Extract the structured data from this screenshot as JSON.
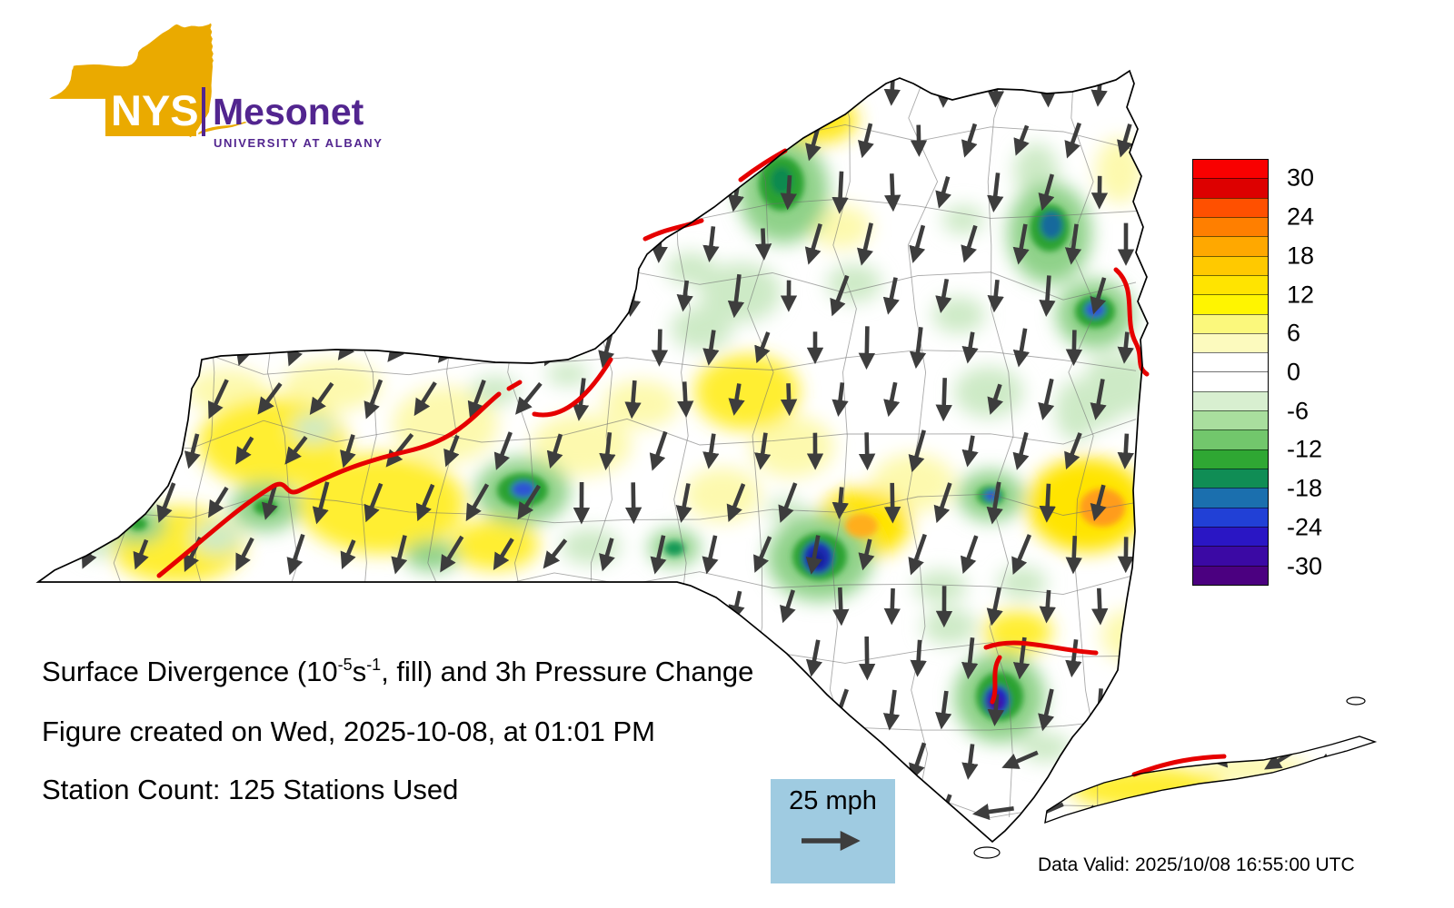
{
  "logo": {
    "nys": "NYS",
    "mesonet": "Mesonet",
    "university": "UNIVERSITY AT ALBANY"
  },
  "colorbar": {
    "tick_labels": [
      "30",
      "24",
      "18",
      "12",
      "6",
      "0",
      "-6",
      "-12",
      "-18",
      "-24",
      "-30"
    ],
    "cell_colors_top_to_bottom": [
      "#f90000",
      "#dd0000",
      "#ff5000",
      "#ff7f00",
      "#ffa800",
      "#ffc900",
      "#ffe400",
      "#fff500",
      "#fbf87c",
      "#fcfabe",
      "#ffffff",
      "#ffffff",
      "#d8efd0",
      "#a9de9e",
      "#72c76c",
      "#2fa733",
      "#108d55",
      "#1b6fae",
      "#2140d6",
      "#2a16c4",
      "#3b09a4",
      "#4b0080"
    ]
  },
  "captions": {
    "title_p1": "Surface Divergence (10",
    "title_sup1": "-5",
    "title_p2": "s",
    "title_sup2": "-1",
    "title_p3": ", fill) and 3h Pressure Change",
    "created": "Figure created on Wed, 2025-10-08, at 01:01 PM",
    "stations": "Station Count: 125 Stations Used"
  },
  "wind_legend": {
    "label": "25 mph"
  },
  "footer": {
    "data_valid": "Data Valid: 2025/10/08 16:55:00 UTC"
  },
  "colors": {
    "logo_orange": "#EAAA00",
    "logo_purple": "#52258F",
    "arrow_gray": "#3d3d3d",
    "contour_red": "#e60000",
    "wind_box_blue": "#9fcbe1",
    "state_border": "#000000"
  },
  "chart_data": {
    "type": "heatmap",
    "title": "Surface Divergence (10^-5 s^-1, fill) and 3h Pressure Change",
    "region": "New York State (NYS Mesonet analysis map)",
    "fill_field": "surface divergence",
    "fill_units": "10^-5 s^-1",
    "colorbar_ticks": [
      30,
      24,
      18,
      12,
      6,
      0,
      -6,
      -12,
      -18,
      -24,
      -30
    ],
    "colorbar_range": [
      -33,
      33
    ],
    "colorbar_colors_top_to_bottom": [
      "#f90000",
      "#dd0000",
      "#ff5000",
      "#ff7f00",
      "#ffa800",
      "#ffc900",
      "#ffe400",
      "#fff500",
      "#fbf87c",
      "#fcfabe",
      "#ffffff",
      "#ffffff",
      "#d8efd0",
      "#a9de9e",
      "#72c76c",
      "#2fa733",
      "#108d55",
      "#1b6fae",
      "#2140d6",
      "#2a16c4",
      "#3b09a4",
      "#4b0080"
    ],
    "overlays": [
      "3h pressure change drawn as red contour lines",
      "surface wind plotted as dark gray arrows, reference vector 25 mph",
      "county boundaries drawn as thin gray lines inside the state outline"
    ],
    "wind_pattern": "arrows point generally southward (northerly flow) statewide, veering toward the southwest over western NY and toward the west-southwest over Long Island",
    "notable_features": [
      "positive divergence (yellow/orange) bands across western NY, the southern tier, central NY, near the mid-Hudson (orange core) and along Long Island",
      "negative divergence (green with blue/purple cores) near the St. Lawrence valley, eastern Adirondacks/Champlain valley, Finger Lakes, central southern tier, Catskills and lower Hudson valley"
    ],
    "station_count": 125,
    "created": "Wed, 2025-10-08, at 01:01 PM",
    "data_valid": "2025/10/08 16:55:00 UTC"
  }
}
